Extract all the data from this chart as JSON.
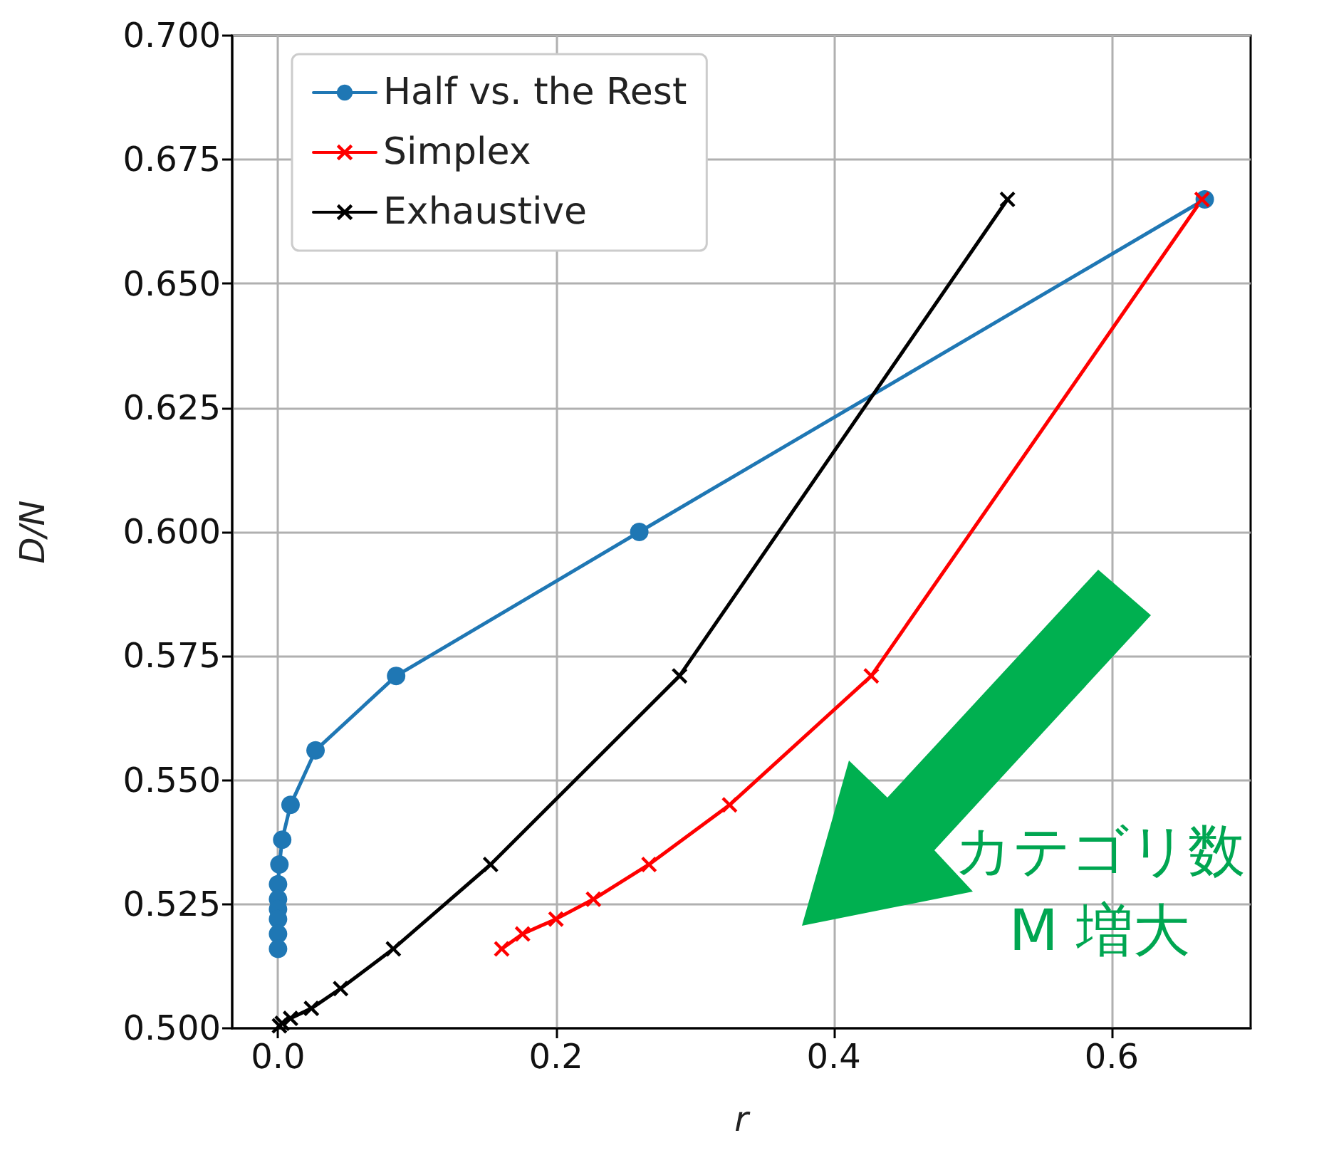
{
  "chart_data": {
    "type": "line",
    "xlabel": "r",
    "ylabel": "D/N",
    "xlim": [
      -0.033,
      0.7
    ],
    "xticks": [
      {
        "value": 0,
        "label": "0.0"
      },
      {
        "value": 0.2,
        "label": "0.2"
      },
      {
        "value": 0.4,
        "label": "0.4"
      },
      {
        "value": 0.6,
        "label": "0.6"
      }
    ],
    "ylim": [
      0.5,
      0.7
    ],
    "yticks": [
      {
        "value": 0.5,
        "label": "0.500"
      },
      {
        "value": 0.525,
        "label": "0.525"
      },
      {
        "value": 0.55,
        "label": "0.550"
      },
      {
        "value": 0.575,
        "label": "0.575"
      },
      {
        "value": 0.6,
        "label": "0.600"
      },
      {
        "value": 0.625,
        "label": "0.625"
      },
      {
        "value": 0.65,
        "label": "0.650"
      },
      {
        "value": 0.675,
        "label": "0.675"
      },
      {
        "value": 0.7,
        "label": "0.700"
      }
    ],
    "grid": true,
    "legend": "top left",
    "series": [
      {
        "name": "Half vs. the Rest",
        "color": "#1f77b4",
        "marker": "circle",
        "x": [
          0.667,
          0.26,
          0.085,
          0.027,
          0.009,
          0.003,
          0.001,
          0,
          0,
          0,
          0,
          null,
          0,
          null,
          0
        ],
        "values": [
          0.667,
          0.6,
          0.571,
          0.556,
          0.545,
          0.538,
          0.533,
          0.529,
          0.526,
          0.524,
          0.522,
          null,
          0.519,
          null,
          0.516
        ]
      },
      {
        "name": "Simplex",
        "color": "#ff0000",
        "marker": "cross",
        "x": [
          0.665,
          0.427,
          0.325,
          0.267,
          0.227,
          0.2,
          0.176,
          0.161
        ],
        "values": [
          0.667,
          0.571,
          0.545,
          0.533,
          0.526,
          0.522,
          0.519,
          0.516
        ]
      },
      {
        "name": "Exhaustive",
        "color": "#000000",
        "marker": "cross",
        "x": [
          0.525,
          0.289,
          0.153,
          0.083,
          0.045,
          0.024,
          0.009,
          0.003,
          0.001
        ],
        "values": [
          0.667,
          0.571,
          0.533,
          0.516,
          0.508,
          0.504,
          0.502,
          0.501,
          0.5005
        ]
      }
    ],
    "annotations": [
      "カテゴリ数 M 増大"
    ]
  }
}
